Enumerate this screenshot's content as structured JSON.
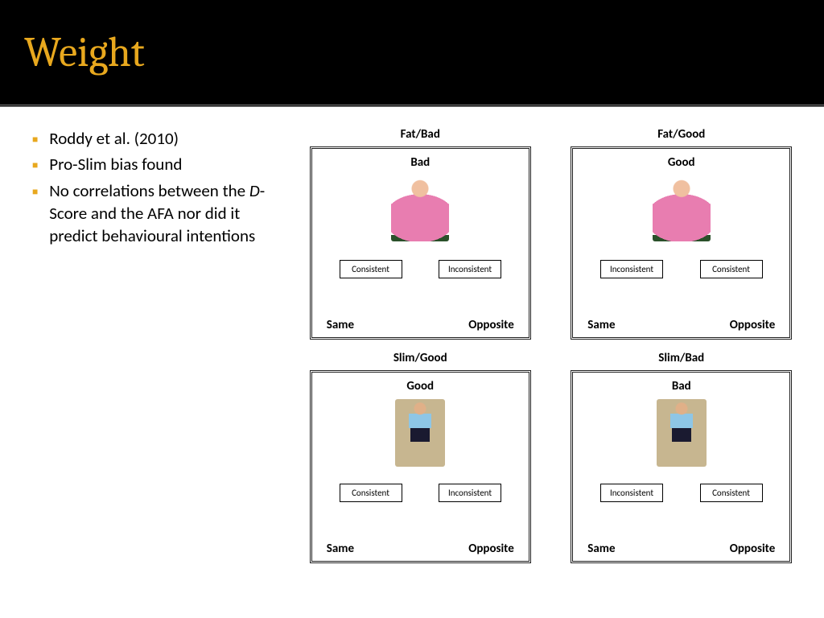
{
  "header": {
    "title": "Weight"
  },
  "bullets": [
    {
      "text": "Roddy et al. (2010)"
    },
    {
      "text": "Pro-Slim bias found"
    },
    {
      "text_html": "No correlations between the D-Score and the AFA nor did it predict behavioural intentions",
      "italic_word": "D"
    }
  ],
  "panels": [
    {
      "title": "Fat/Bad",
      "stim_label": "Bad",
      "image_kind": "fat",
      "left_btn": "Consistent",
      "right_btn": "Inconsistent",
      "left_bottom": "Same",
      "right_bottom": "Opposite"
    },
    {
      "title": "Fat/Good",
      "stim_label": "Good",
      "image_kind": "fat",
      "left_btn": "Inconsistent",
      "right_btn": "Consistent",
      "left_bottom": "Same",
      "right_bottom": "Opposite"
    },
    {
      "title": "Slim/Good",
      "stim_label": "Good",
      "image_kind": "slim",
      "left_btn": "Consistent",
      "right_btn": "Inconsistent",
      "left_bottom": "Same",
      "right_bottom": "Opposite"
    },
    {
      "title": "Slim/Bad",
      "stim_label": "Bad",
      "image_kind": "slim",
      "left_btn": "Inconsistent",
      "right_btn": "Consistent",
      "left_bottom": "Same",
      "right_bottom": "Opposite"
    }
  ],
  "colors": {
    "accent": "#e8a81e",
    "header_bg": "#000000",
    "text": "#000000",
    "border": "#202020"
  }
}
